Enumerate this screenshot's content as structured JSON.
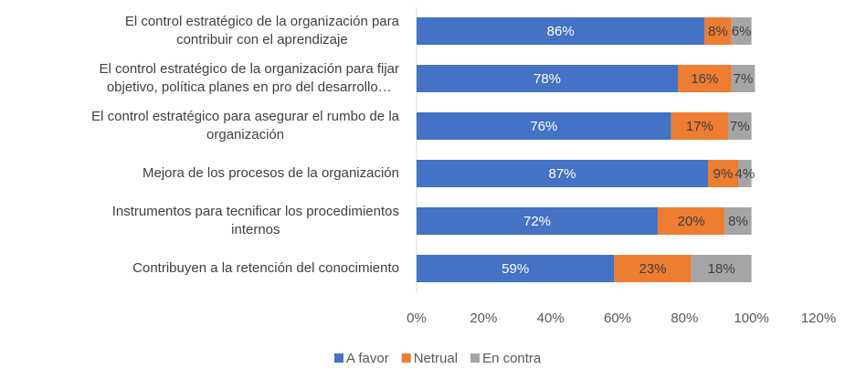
{
  "chart_data": {
    "type": "stacked-bar-horizontal",
    "categories": [
      "El control estratégico de la organización para\ncontribuir con el aprendizaje",
      "El control estratégico de la organización para fijar\nobjetivo, política planes en pro del desarrollo…",
      "El control estratégico para asegurar el rumbo de la\norganización",
      "Mejora de los procesos de la organización",
      "Instrumentos para tecnificar los procedimientos\ninternos",
      "Contribuyen a la retención del conocimiento"
    ],
    "series": [
      {
        "name": "A favor",
        "color": "#4472c4",
        "values": [
          86,
          78,
          76,
          87,
          72,
          59
        ],
        "value_labels": [
          "86%",
          "78%",
          "76%",
          "87%",
          "72%",
          "59%"
        ]
      },
      {
        "name": "Netrual",
        "color": "#ed7d31",
        "values": [
          8,
          16,
          17,
          9,
          20,
          23
        ],
        "value_labels": [
          "8%",
          "16%",
          "17%",
          "9%",
          "20%",
          "23%"
        ]
      },
      {
        "name": "En contra",
        "color": "#a5a5a5",
        "values": [
          6,
          7,
          7,
          4,
          8,
          18
        ],
        "value_labels": [
          "6%",
          "7%",
          "7%",
          "4%",
          "8%",
          "18%"
        ]
      }
    ],
    "xlim": [
      0,
      120
    ],
    "xticks": [
      {
        "value": 0,
        "label": "0%"
      },
      {
        "value": 20,
        "label": "20%"
      },
      {
        "value": 40,
        "label": "40%"
      },
      {
        "value": 60,
        "label": "60%"
      },
      {
        "value": 80,
        "label": "80%"
      },
      {
        "value": 100,
        "label": "100%"
      },
      {
        "value": 120,
        "label": "120%"
      }
    ],
    "legend": "bottom"
  }
}
